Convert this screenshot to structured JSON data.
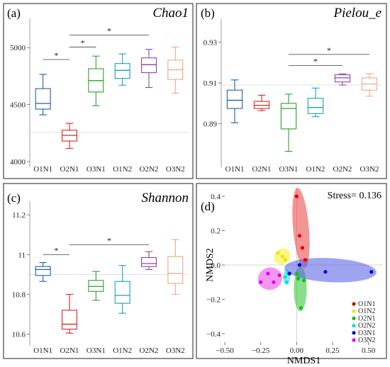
{
  "chart_data": [
    {
      "panel": "a",
      "type": "box",
      "title": "Chao1",
      "categories": [
        "O1N1",
        "O2N1",
        "O3N1",
        "O1N2",
        "O2N2",
        "O3N2"
      ],
      "colors": [
        "#1f5fa8",
        "#d62728",
        "#2ca02c",
        "#17a2b8",
        "#8e44ad",
        "#f4a582"
      ],
      "yticks": [
        4000,
        4500,
        5000
      ],
      "ylim": [
        4000,
        5200
      ],
      "refline": 4255,
      "boxes": [
        {
          "min": 4410,
          "q1": 4460,
          "median": 4510,
          "q3": 4640,
          "max": 4765
        },
        {
          "min": 4115,
          "q1": 4180,
          "median": 4230,
          "q3": 4275,
          "max": 4335
        },
        {
          "min": 4490,
          "q1": 4610,
          "median": 4710,
          "q3": 4815,
          "max": 4925
        },
        {
          "min": 4670,
          "q1": 4730,
          "median": 4800,
          "q3": 4860,
          "max": 4945
        },
        {
          "min": 4650,
          "q1": 4780,
          "median": 4850,
          "q3": 4910,
          "max": 4985
        },
        {
          "min": 4600,
          "q1": 4720,
          "median": 4805,
          "q3": 4890,
          "max": 5005
        }
      ],
      "significance": [
        {
          "from": 0,
          "to": 1,
          "y": 4895,
          "label": "*"
        },
        {
          "from": 1,
          "to": 2,
          "y": 5005,
          "label": "*"
        },
        {
          "from": 1,
          "to": 4,
          "y": 5110,
          "label": "*"
        }
      ]
    },
    {
      "panel": "b",
      "type": "box",
      "title": "Pielou_e",
      "categories": [
        "O1N1",
        "O2N1",
        "O3N1",
        "O1N2",
        "O2N2",
        "O3N2"
      ],
      "colors": [
        "#1f5fa8",
        "#d62728",
        "#2ca02c",
        "#17a2b8",
        "#8e44ad",
        "#f4a582"
      ],
      "yticks": [
        0.89,
        0.91,
        0.93
      ],
      "ylim": [
        0.8715,
        0.9385
      ],
      "refline": 0.909,
      "boxes": [
        {
          "min": 0.8905,
          "q1": 0.8975,
          "median": 0.9015,
          "q3": 0.9065,
          "max": 0.9115
        },
        {
          "min": 0.8965,
          "q1": 0.8975,
          "median": 0.899,
          "q3": 0.901,
          "max": 0.904
        },
        {
          "min": 0.8765,
          "q1": 0.8875,
          "median": 0.8975,
          "q3": 0.9,
          "max": 0.9045
        },
        {
          "min": 0.8935,
          "q1": 0.895,
          "median": 0.898,
          "q3": 0.9025,
          "max": 0.9075
        },
        {
          "min": 0.909,
          "q1": 0.9105,
          "median": 0.9125,
          "q3": 0.914,
          "max": 0.9145
        },
        {
          "min": 0.9035,
          "q1": 0.9065,
          "median": 0.9095,
          "q3": 0.9125,
          "max": 0.9145
        }
      ],
      "significance": [
        {
          "from": 2,
          "to": 4,
          "y": 0.9185,
          "label": "*"
        },
        {
          "from": 2,
          "to": 5,
          "y": 0.924,
          "label": "*"
        }
      ]
    },
    {
      "panel": "c",
      "type": "box",
      "title": "Shannon",
      "categories": [
        "O1N1",
        "O2N1",
        "O3N1",
        "O1N2",
        "O2N2",
        "O3N2"
      ],
      "colors": [
        "#1f5fa8",
        "#d62728",
        "#2ca02c",
        "#17a2b8",
        "#8e44ad",
        "#f4a582"
      ],
      "yticks": [
        10.6,
        10.8,
        11.0,
        11.2
      ],
      "ylim": [
        10.57,
        11.24
      ],
      "refline": 10.9,
      "boxes": [
        {
          "min": 10.865,
          "q1": 10.895,
          "median": 10.925,
          "q3": 10.94,
          "max": 10.96
        },
        {
          "min": 10.605,
          "q1": 10.625,
          "median": 10.65,
          "q3": 10.72,
          "max": 10.8
        },
        {
          "min": 10.77,
          "q1": 10.815,
          "median": 10.84,
          "q3": 10.87,
          "max": 10.915
        },
        {
          "min": 10.705,
          "q1": 10.755,
          "median": 10.795,
          "q3": 10.865,
          "max": 10.945
        },
        {
          "min": 10.925,
          "q1": 10.94,
          "median": 10.955,
          "q3": 10.985,
          "max": 11.015
        },
        {
          "min": 10.8,
          "q1": 10.855,
          "median": 10.905,
          "q3": 10.99,
          "max": 11.075
        }
      ],
      "significance": [
        {
          "from": 0,
          "to": 1,
          "y": 11.0,
          "label": "*"
        },
        {
          "from": 1,
          "to": 4,
          "y": 11.05,
          "label": "*"
        }
      ]
    },
    {
      "panel": "d",
      "type": "scatter",
      "xlabel": "NMDS1",
      "ylabel": "NMDS2",
      "annotation": "Stress= 0.136",
      "xlim": [
        -0.5,
        0.6
      ],
      "ylim": [
        -0.45,
        0.45
      ],
      "xticks": [
        -0.5,
        -0.25,
        0.0,
        0.25,
        0.5
      ],
      "xtick_labels": [
        "−0.50",
        "−0.25",
        "0.00",
        "0.25",
        "0.50"
      ],
      "yticks": [
        -0.4,
        -0.2,
        0.0,
        0.2,
        0.4
      ],
      "ytick_labels": [
        "−0.4",
        "−0.2",
        "0.0",
        "0.2",
        "0.4"
      ],
      "legend_position": "bottom-right",
      "series": [
        {
          "name": "O1N1",
          "color": "#e00000",
          "fill": "rgba(235,60,60,0.55)",
          "points": [
            [
              0.0,
              0.4
            ],
            [
              0.04,
              0.1
            ],
            [
              0.06,
              0.03
            ],
            [
              0.02,
              0.17
            ]
          ],
          "ellipse": {
            "cx": 0.03,
            "cy": 0.215,
            "rx": 0.055,
            "ry": 0.235,
            "angle": -5
          }
        },
        {
          "name": "O1N2",
          "color": "#e8e800",
          "fill": "rgba(250,240,50,0.6)",
          "points": [
            [
              -0.13,
              0.07
            ],
            [
              -0.08,
              0.03
            ],
            [
              -0.1,
              0.05
            ]
          ],
          "ellipse": {
            "cx": -0.1,
            "cy": 0.05,
            "rx": 0.06,
            "ry": 0.045,
            "angle": -35
          }
        },
        {
          "name": "O2N1",
          "color": "#10c010",
          "fill": "rgba(60,200,60,0.6)",
          "points": [
            [
              0.0,
              -0.05
            ],
            [
              0.05,
              -0.09
            ],
            [
              0.03,
              -0.25
            ],
            [
              0.01,
              -0.08
            ]
          ],
          "ellipse": {
            "cx": 0.025,
            "cy": -0.14,
            "rx": 0.045,
            "ry": 0.13,
            "angle": 0
          }
        },
        {
          "name": "O2N2",
          "color": "#00e0e0",
          "fill": "rgba(60,220,230,0.6)",
          "points": [
            [
              -0.08,
              -0.07
            ],
            [
              -0.06,
              -0.05
            ],
            [
              -0.07,
              -0.1
            ]
          ],
          "ellipse": {
            "cx": -0.07,
            "cy": -0.07,
            "rx": 0.025,
            "ry": 0.045,
            "angle": 0
          }
        },
        {
          "name": "O3N1",
          "color": "#0000d0",
          "fill": "rgba(80,90,230,0.55)",
          "points": [
            [
              0.52,
              -0.04
            ],
            [
              0.2,
              -0.04
            ],
            [
              0.02,
              0.0
            ],
            [
              -0.05,
              -0.05
            ]
          ],
          "ellipse": {
            "cx": 0.235,
            "cy": -0.03,
            "rx": 0.32,
            "ry": 0.07,
            "angle": 3
          }
        },
        {
          "name": "O3N2",
          "color": "#e000e0",
          "fill": "rgba(235,80,235,0.6)",
          "points": [
            [
              -0.2,
              -0.05
            ],
            [
              -0.25,
              -0.1
            ],
            [
              -0.16,
              -0.1
            ],
            [
              -0.12,
              -0.06
            ]
          ],
          "ellipse": {
            "cx": -0.185,
            "cy": -0.08,
            "rx": 0.085,
            "ry": 0.065,
            "angle": -15
          }
        }
      ]
    }
  ],
  "panel_labels": [
    "(a)",
    "(b)",
    "(c)",
    "(d)"
  ]
}
